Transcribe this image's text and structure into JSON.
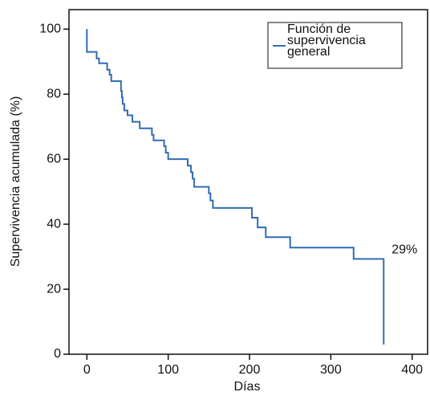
{
  "chart_data": {
    "type": "step",
    "xlabel": "Días",
    "ylabel": "Supervivencia acumulada (%)",
    "x": [
      0,
      0,
      12,
      15,
      25,
      28,
      30,
      42,
      43,
      44,
      46,
      50,
      56,
      65,
      80,
      82,
      95,
      97,
      100,
      124,
      128,
      130,
      132,
      150,
      152,
      155,
      203,
      210,
      220,
      250,
      328,
      365
    ],
    "series": [
      {
        "name": "Función de supervivencia general",
        "color": "#2f6db4",
        "values": [
          100,
          93,
          91,
          89.5,
          87.5,
          86,
          84,
          81,
          79,
          77,
          75,
          73.5,
          71.5,
          69.5,
          67.5,
          65.8,
          64,
          62,
          60,
          58,
          56,
          54,
          51.5,
          49.5,
          47.3,
          45,
          42,
          39,
          36,
          32.8,
          29.3,
          3
        ]
      }
    ],
    "annotation": "29%",
    "xlim": [
      -22,
      419
    ],
    "ylim": [
      0,
      106
    ],
    "xticks": [
      0,
      100,
      200,
      300,
      400
    ],
    "yticks": [
      0,
      20,
      40,
      60,
      80,
      100
    ]
  }
}
